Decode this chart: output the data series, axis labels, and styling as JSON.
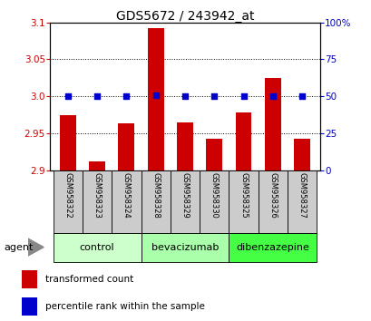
{
  "title": "GDS5672 / 243942_at",
  "samples": [
    "GSM958322",
    "GSM958323",
    "GSM958324",
    "GSM958328",
    "GSM958329",
    "GSM958330",
    "GSM958325",
    "GSM958326",
    "GSM958327"
  ],
  "transformed_count": [
    2.975,
    2.912,
    2.963,
    3.092,
    2.965,
    2.942,
    2.978,
    3.025,
    2.942
  ],
  "percentile_rank": [
    50,
    50,
    50,
    51,
    50,
    50,
    50,
    50,
    50
  ],
  "ylim_left": [
    2.9,
    3.1
  ],
  "ylim_right": [
    0,
    100
  ],
  "yticks_left": [
    2.9,
    2.95,
    3.0,
    3.05,
    3.1
  ],
  "yticks_right": [
    0,
    25,
    50,
    75,
    100
  ],
  "groups": [
    {
      "label": "control",
      "indices": [
        0,
        1,
        2
      ],
      "color": "#ccffcc"
    },
    {
      "label": "bevacizumab",
      "indices": [
        3,
        4,
        5
      ],
      "color": "#aaffaa"
    },
    {
      "label": "dibenzazepine",
      "indices": [
        6,
        7,
        8
      ],
      "color": "#44ff44"
    }
  ],
  "bar_color": "#cc0000",
  "dot_color": "#0000cc",
  "sample_box_color": "#cccccc",
  "tick_label_color_left": "#cc0000",
  "tick_label_color_right": "#0000cc",
  "agent_label": "agent",
  "legend_items": [
    {
      "label": "transformed count",
      "color": "#cc0000"
    },
    {
      "label": "percentile rank within the sample",
      "color": "#0000cc"
    }
  ]
}
